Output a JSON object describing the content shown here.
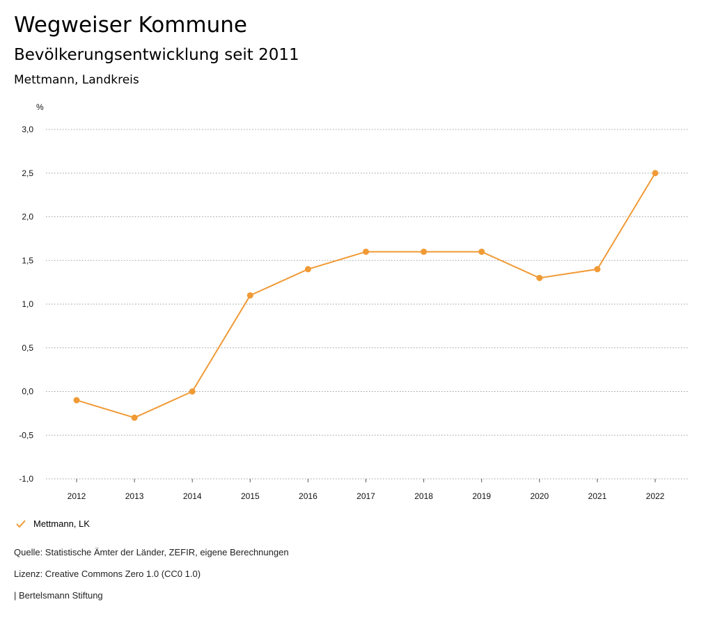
{
  "header": {
    "title": "Wegweiser Kommune",
    "subtitle": "Bevölkerungsentwicklung seit 2011",
    "region": "Mettmann, Landkreis"
  },
  "chart_data": {
    "type": "line",
    "ylabel": "%",
    "x": [
      "2012",
      "2013",
      "2014",
      "2015",
      "2016",
      "2017",
      "2018",
      "2019",
      "2020",
      "2021",
      "2022"
    ],
    "series": [
      {
        "name": "Mettmann, LK",
        "color": "#f09a36",
        "values": [
          -0.1,
          -0.3,
          0.0,
          1.1,
          1.4,
          1.6,
          1.6,
          1.6,
          1.3,
          1.4,
          2.5
        ]
      }
    ],
    "ylim": [
      -1.0,
      3.0
    ],
    "yticks": [
      "-1,0",
      "-0,5",
      "0,0",
      "0,5",
      "1,0",
      "1,5",
      "2,0",
      "2,5",
      "3,0"
    ],
    "ytick_values": [
      -1.0,
      -0.5,
      0.0,
      0.5,
      1.0,
      1.5,
      2.0,
      2.5,
      3.0
    ],
    "grid": true,
    "legend_position": "bottom-left"
  },
  "legend": {
    "label": "Mettmann, LK"
  },
  "footer": {
    "source": "Quelle: Statistische Ämter der Länder, ZEFIR, eigene Berechnungen",
    "license": "Lizenz: Creative Commons Zero 1.0 (CC0 1.0)",
    "publisher": "| Bertelsmann Stiftung"
  }
}
